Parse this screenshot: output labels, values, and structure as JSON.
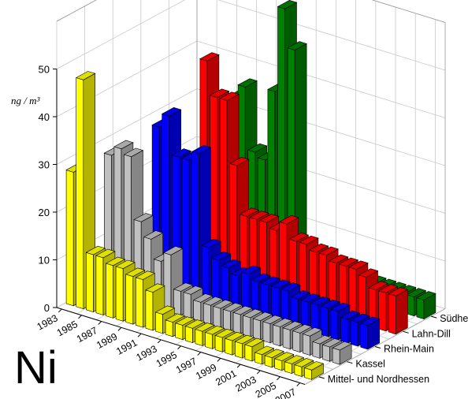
{
  "element_label": "Ni",
  "chart_data": {
    "type": "bar3d",
    "unit_label": "ng / m³",
    "zlim": [
      0,
      50
    ],
    "z_ticks": [
      "0",
      "10",
      "20",
      "30",
      "40",
      "50"
    ],
    "years": [
      "1983",
      "1984",
      "1985",
      "1986",
      "1987",
      "1988",
      "1989",
      "1990",
      "1991",
      "1992",
      "1993",
      "1994",
      "1995",
      "1996",
      "1997",
      "1998",
      "1999",
      "2000",
      "2001",
      "2002",
      "2003",
      "2004",
      "2005",
      "2006",
      "2007"
    ],
    "year_tick_labels": [
      "1983",
      "1985",
      "1987",
      "1989",
      "1991",
      "1993",
      "1995",
      "1997",
      "1999",
      "2001",
      "2003",
      "2005",
      "2007"
    ],
    "grid": true,
    "series": [
      {
        "name": "Mittel- und Nordhessen",
        "color": "#ffff00",
        "values": [
          28,
          48,
          12,
          12,
          11,
          11,
          10,
          10,
          8,
          4,
          3,
          3,
          3,
          3,
          3,
          3,
          3,
          3,
          3,
          2,
          2,
          2,
          2,
          2,
          2
        ]
      },
      {
        "name": "Kassel",
        "color": "#c0c0c0",
        "values": [
          null,
          29,
          31,
          30,
          17,
          14,
          10,
          12,
          5,
          5,
          4,
          4,
          4,
          4,
          4,
          4,
          4,
          4,
          4,
          4,
          4,
          4,
          3,
          3,
          3
        ]
      },
      {
        "name": "Rhein-Main",
        "color": "#0000ff",
        "values": [
          null,
          null,
          null,
          33,
          36,
          28,
          28,
          30,
          11,
          9,
          8,
          7,
          8,
          7,
          7,
          7,
          7,
          6,
          6,
          6,
          6,
          6,
          5,
          5,
          5
        ]
      },
      {
        "name": "Lahn-Dill",
        "color": "#ff0000",
        "values": [
          null,
          null,
          null,
          null,
          null,
          45,
          38,
          38,
          25,
          15,
          15,
          15,
          14,
          16,
          13,
          13,
          12,
          12,
          11,
          11,
          11,
          10,
          8,
          8,
          8
        ]
      },
      {
        "name": "Südhessen",
        "color": "#008000",
        "values": [
          null,
          null,
          null,
          null,
          null,
          34,
          37,
          24,
          23,
          38,
          56,
          48,
          6,
          5,
          5,
          4,
          4,
          4,
          4,
          4,
          4,
          4,
          4,
          4,
          4
        ]
      }
    ]
  }
}
